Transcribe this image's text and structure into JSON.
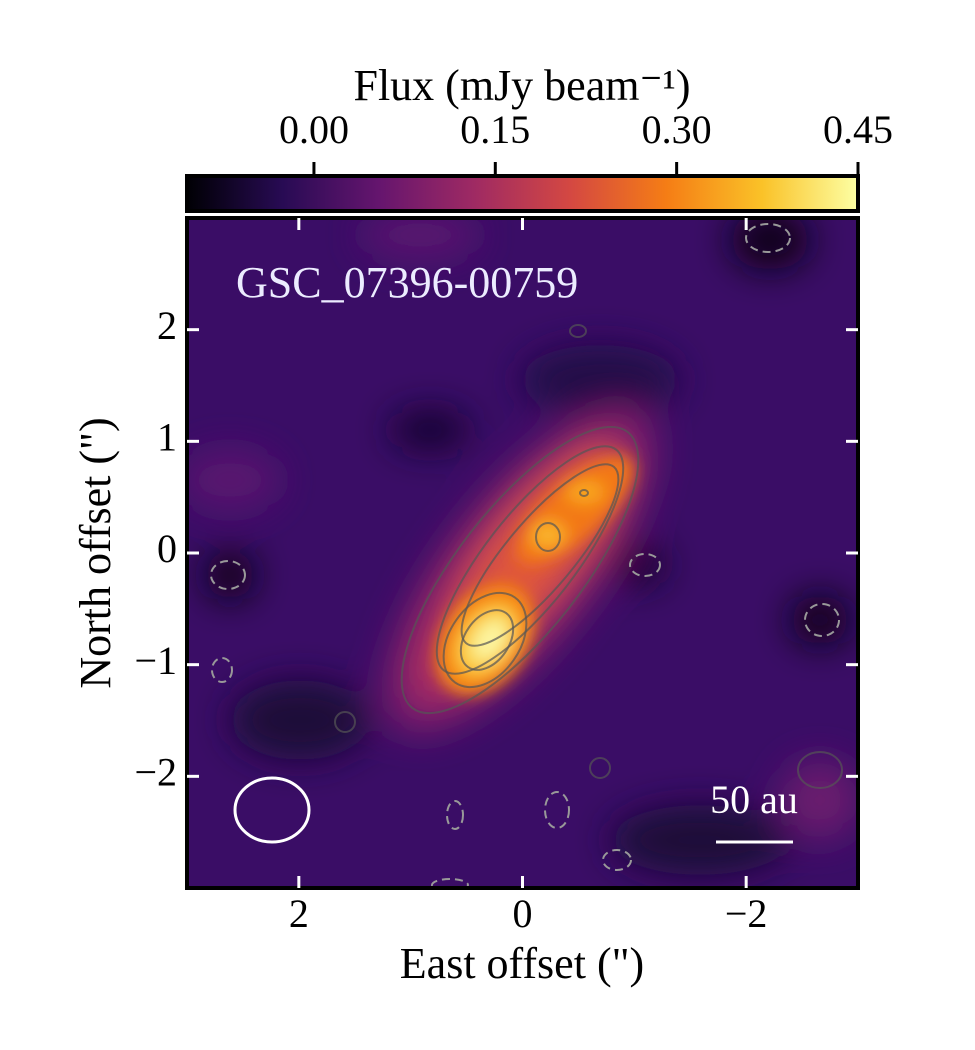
{
  "chart_data": {
    "type": "image",
    "title": "GSC_07396-00759",
    "xlabel": "East offset (\")",
    "ylabel": "North offset (\")",
    "xlim": [
      3,
      -3
    ],
    "ylim": [
      -3,
      3
    ],
    "xticks": [
      2,
      0,
      {
        "value": -2,
        "label": "−2"
      }
    ],
    "yticks": [
      {
        "value": -2,
        "label": "−2"
      },
      {
        "value": -1,
        "label": "−1"
      },
      0,
      1,
      2
    ],
    "colorbar_label": "Flux (mJy beam⁻¹)",
    "clim": [
      -0.105,
      0.45
    ],
    "cticks": [
      {
        "value": 0,
        "label": "0.00"
      },
      {
        "value": 0.15,
        "label": "0.15"
      },
      {
        "value": 0.3,
        "label": "0.30"
      },
      {
        "value": 0.45,
        "label": "0.45"
      }
    ],
    "cmap_colors": [
      "#000004",
      "#280b54",
      "#65156e",
      "#9f2a63",
      "#d44842",
      "#f57d15",
      "#fac228",
      "#fcffa4"
    ],
    "scalebar_label": "50 au"
  }
}
